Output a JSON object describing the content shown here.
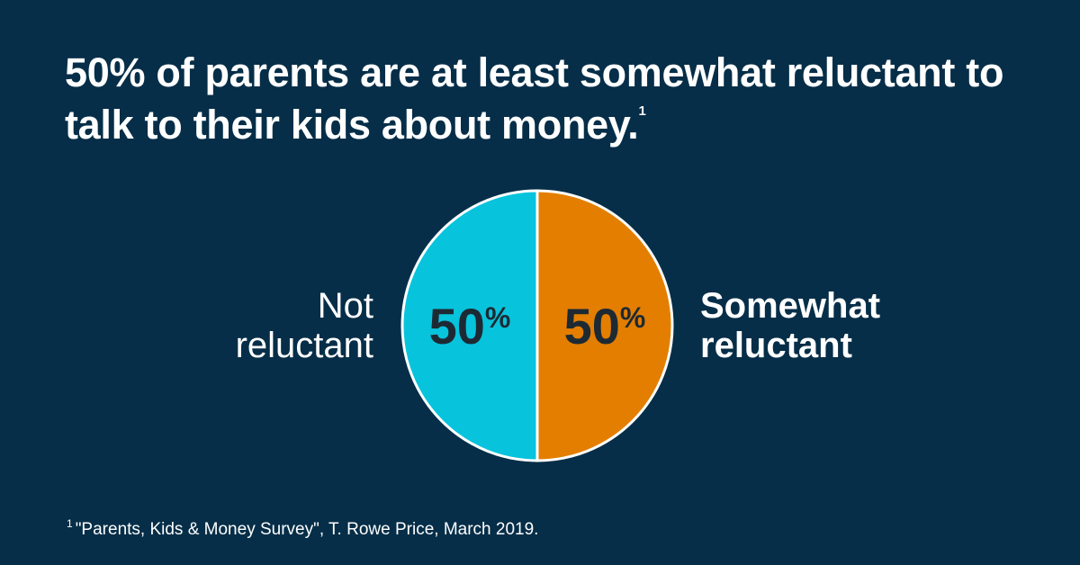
{
  "chart_data": {
    "type": "pie",
    "title": "50% of parents are at least somewhat reluctant to talk to their kids about money.",
    "title_note": "1",
    "categories": [
      "Not reluctant",
      "Somewhat reluctant"
    ],
    "values": [
      50,
      50
    ],
    "value_labels": [
      "50%",
      "50%"
    ],
    "colors": [
      "#08c3dc",
      "#e47e00"
    ],
    "footnote_marker": "1",
    "footnote": "\"Parents, Kids & Money Survey\", T. Rowe Price, March 2019."
  }
}
